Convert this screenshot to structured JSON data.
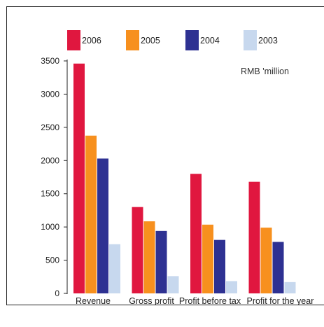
{
  "chart_data": {
    "type": "bar",
    "categories": [
      "Revenue",
      "Gross profit",
      "Profit before tax",
      "Profit for the year"
    ],
    "series": [
      {
        "name": "2006",
        "color": "#e0173f",
        "values": [
          3460,
          1300,
          1800,
          1680
        ]
      },
      {
        "name": "2005",
        "color": "#f7901e",
        "values": [
          2375,
          1085,
          1035,
          990
        ]
      },
      {
        "name": "2004",
        "color": "#2e3192",
        "values": [
          2030,
          940,
          805,
          775
        ]
      },
      {
        "name": "2003",
        "color": "#c7d8ee",
        "values": [
          740,
          260,
          185,
          170
        ]
      }
    ],
    "yticks": [
      0,
      500,
      1000,
      1500,
      2000,
      2500,
      3000,
      3500
    ],
    "ylim": [
      0,
      3500
    ],
    "unit_label": "RMB 'million",
    "legend_position": "top",
    "grid": false
  }
}
